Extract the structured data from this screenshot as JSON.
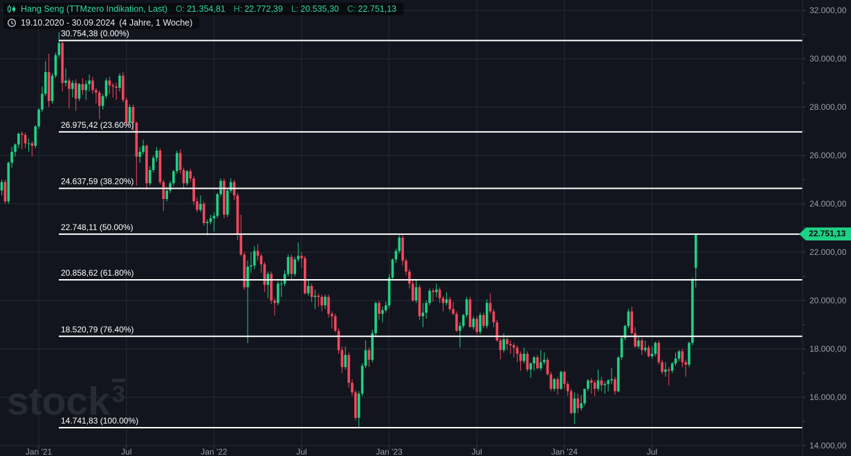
{
  "header": {
    "symbol": "Hang Seng (TTMzero Indikation, Last)",
    "open_label": "O:",
    "open": "21.354,81",
    "high_label": "H:",
    "high": "22.772,39",
    "low_label": "L:",
    "low": "20.535,30",
    "close_label": "C:",
    "close": "22.751,13",
    "date_range": "19.10.2020 - 30.09.2024",
    "period": "(4 Jahre, 1 Woche)"
  },
  "price_tag": {
    "value": "22.751,13"
  },
  "watermark": {
    "text": "stock",
    "sup": "3"
  },
  "colors": {
    "background": "#12151d",
    "grid": "#262a34",
    "up": "#1ed184",
    "down": "#f6465d",
    "fib": "#ffffff",
    "axis_text": "#9b9fa8",
    "tick": "#3c414d",
    "header_green": "#2ed9a2",
    "tag_bg": "#1ed184",
    "tag_text": "#0a0f17"
  },
  "chart_data": {
    "type": "candlestick",
    "title": "Hang Seng (TTMzero Indikation, Last)",
    "timeframe": "1 Woche",
    "range": "19.10.2020 - 30.09.2024",
    "ylim": [
      14000,
      32000
    ],
    "y_label_step": 2000,
    "y_tick_step": 1000,
    "grid": true,
    "last_price": 22751.13,
    "y_axis_labels": [
      "32.000,00",
      "30.000,00",
      "28.000,00",
      "26.000,00",
      "24.000,00",
      "22.000,00",
      "20.000,00",
      "18.000,00",
      "16.000,00",
      "14.000,00"
    ],
    "x_ticks": [
      {
        "week": 11,
        "label": "Jan '21"
      },
      {
        "week": 37,
        "label": "Jul"
      },
      {
        "week": 63,
        "label": "Jan '22"
      },
      {
        "week": 89,
        "label": "Jul"
      },
      {
        "week": 115,
        "label": "Jan '23"
      },
      {
        "week": 141,
        "label": "Jul"
      },
      {
        "week": 167,
        "label": "Jan '24"
      },
      {
        "week": 193,
        "label": "Jul"
      }
    ],
    "fib_levels": [
      {
        "price": 30754.38,
        "label": "30.754,38 (0.00%)"
      },
      {
        "price": 26975.42,
        "label": "26.975,42 (23.60%)"
      },
      {
        "price": 24637.59,
        "label": "24.637,59 (38.20%)"
      },
      {
        "price": 22748.11,
        "label": "22.748,11 (50.00%)"
      },
      {
        "price": 20858.62,
        "label": "20.858,62 (61.80%)"
      },
      {
        "price": 18520.79,
        "label": "18.520,79 (76.40%)"
      },
      {
        "price": 14741.83,
        "label": "14.741,83 (100.00%)"
      }
    ],
    "candles": [
      [
        24550,
        25000,
        24350,
        24900
      ],
      [
        24900,
        25000,
        24000,
        24100
      ],
      [
        24100,
        25750,
        24000,
        25700
      ],
      [
        25700,
        26350,
        25500,
        26150
      ],
      [
        26150,
        26500,
        25950,
        26450
      ],
      [
        26450,
        26950,
        26300,
        26900
      ],
      [
        26900,
        27000,
        26250,
        26850
      ],
      [
        26850,
        26950,
        26300,
        26500
      ],
      [
        26500,
        26700,
        26150,
        26500
      ],
      [
        26500,
        26600,
        25950,
        26400
      ],
      [
        26400,
        27250,
        26300,
        27200
      ],
      [
        27200,
        27950,
        27100,
        27900
      ],
      [
        27900,
        28850,
        27800,
        28550
      ],
      [
        28550,
        29900,
        28450,
        29450
      ],
      [
        29450,
        30200,
        28000,
        28250
      ],
      [
        28250,
        29400,
        28150,
        29300
      ],
      [
        29300,
        30250,
        29200,
        30150
      ],
      [
        30150,
        31100,
        30050,
        30650
      ],
      [
        30650,
        30750,
        28650,
        29000
      ],
      [
        29000,
        29600,
        28850,
        29100
      ],
      [
        29100,
        29200,
        27950,
        28750
      ],
      [
        28750,
        29100,
        28400,
        29000
      ],
      [
        29000,
        29150,
        27850,
        28350
      ],
      [
        28350,
        29000,
        28250,
        28950
      ],
      [
        28950,
        29200,
        28500,
        28700
      ],
      [
        28700,
        29100,
        28300,
        28950
      ],
      [
        28950,
        29350,
        28650,
        29100
      ],
      [
        29100,
        29250,
        28550,
        28700
      ],
      [
        28700,
        28800,
        28150,
        28600
      ],
      [
        28600,
        28700,
        27500,
        28050
      ],
      [
        28050,
        28550,
        27900,
        28450
      ],
      [
        28450,
        29200,
        28350,
        29100
      ],
      [
        29100,
        29250,
        28550,
        28900
      ],
      [
        28900,
        29000,
        28400,
        28850
      ],
      [
        28850,
        29000,
        28300,
        28800
      ],
      [
        28800,
        29400,
        28650,
        29300
      ],
      [
        29300,
        29450,
        28200,
        28300
      ],
      [
        28300,
        28400,
        27250,
        27350
      ],
      [
        27350,
        28100,
        27250,
        28000
      ],
      [
        28000,
        28100,
        26950,
        27350
      ],
      [
        27350,
        27400,
        24750,
        25950
      ],
      [
        25950,
        26350,
        25700,
        26150
      ],
      [
        26150,
        26650,
        26050,
        26400
      ],
      [
        26400,
        26450,
        24580,
        24850
      ],
      [
        24850,
        25550,
        24750,
        25400
      ],
      [
        25400,
        26000,
        25300,
        25900
      ],
      [
        25900,
        26350,
        25750,
        26200
      ],
      [
        26200,
        26300,
        24800,
        24900
      ],
      [
        24900,
        25000,
        23700,
        24200
      ],
      [
        24200,
        24700,
        24100,
        24550
      ],
      [
        24550,
        24950,
        24450,
        24850
      ],
      [
        24850,
        25400,
        24750,
        25350
      ],
      [
        25350,
        26200,
        25250,
        26100
      ],
      [
        26100,
        26250,
        25250,
        25400
      ],
      [
        25400,
        25500,
        24650,
        24850
      ],
      [
        24850,
        25400,
        24750,
        25350
      ],
      [
        25350,
        25450,
        24900,
        25050
      ],
      [
        25050,
        25150,
        23950,
        24100
      ],
      [
        24100,
        24250,
        23650,
        23750
      ],
      [
        23750,
        24350,
        23650,
        24000
      ],
      [
        24000,
        24100,
        23100,
        23200
      ],
      [
        23200,
        23350,
        22700,
        23250
      ],
      [
        23250,
        23550,
        23150,
        23400
      ],
      [
        23400,
        23650,
        22850,
        23500
      ],
      [
        23500,
        24450,
        23400,
        24400
      ],
      [
        24400,
        25050,
        24300,
        24950
      ],
      [
        24950,
        25050,
        23400,
        23550
      ],
      [
        23550,
        24600,
        23450,
        24550
      ],
      [
        24550,
        25050,
        24450,
        24900
      ],
      [
        24900,
        25000,
        24150,
        24350
      ],
      [
        24350,
        24450,
        22500,
        22750
      ],
      [
        22750,
        23550,
        21850,
        21900
      ],
      [
        21900,
        22000,
        20450,
        20550
      ],
      [
        20550,
        21650,
        18235,
        21400
      ],
      [
        21400,
        22000,
        21150,
        21450
      ],
      [
        21450,
        22250,
        21300,
        22050
      ],
      [
        22050,
        22350,
        21650,
        21850
      ],
      [
        21850,
        21950,
        21150,
        21500
      ],
      [
        21500,
        21600,
        20350,
        20650
      ],
      [
        20650,
        21200,
        20100,
        21100
      ],
      [
        21100,
        21200,
        19850,
        20000
      ],
      [
        20000,
        20100,
        19380,
        19900
      ],
      [
        19900,
        20800,
        19800,
        20700
      ],
      [
        20700,
        20850,
        20150,
        20700
      ],
      [
        20700,
        21250,
        20600,
        21100
      ],
      [
        21100,
        21900,
        21000,
        21800
      ],
      [
        21800,
        21900,
        20850,
        21100
      ],
      [
        21100,
        21800,
        21000,
        21700
      ],
      [
        21700,
        22400,
        21600,
        21850
      ],
      [
        21850,
        22000,
        21350,
        21750
      ],
      [
        21750,
        21850,
        20250,
        20300
      ],
      [
        20300,
        20850,
        20200,
        20600
      ],
      [
        20600,
        20700,
        19950,
        20150
      ],
      [
        20150,
        20450,
        19650,
        20200
      ],
      [
        20200,
        20300,
        19750,
        20150
      ],
      [
        20150,
        20250,
        19550,
        19800
      ],
      [
        19800,
        20250,
        19650,
        20150
      ],
      [
        20150,
        20250,
        19300,
        19450
      ],
      [
        19450,
        19550,
        18850,
        19350
      ],
      [
        19350,
        19450,
        18700,
        18750
      ],
      [
        18750,
        18850,
        17800,
        17950
      ],
      [
        17950,
        18100,
        17000,
        17250
      ],
      [
        17250,
        18100,
        17150,
        17750
      ],
      [
        17750,
        17850,
        16400,
        16600
      ],
      [
        16600,
        16750,
        16050,
        16200
      ],
      [
        16200,
        16300,
        15050,
        15150
      ],
      [
        15150,
        16250,
        14742,
        16150
      ],
      [
        16150,
        17400,
        16050,
        17300
      ],
      [
        17300,
        18350,
        17200,
        17950
      ],
      [
        17950,
        18050,
        17250,
        17550
      ],
      [
        17550,
        18800,
        17450,
        18650
      ],
      [
        18650,
        19950,
        18550,
        19900
      ],
      [
        19900,
        20000,
        19200,
        19450
      ],
      [
        19450,
        19750,
        19100,
        19600
      ],
      [
        19600,
        19950,
        19500,
        19800
      ],
      [
        19800,
        21100,
        19700,
        20950
      ],
      [
        20950,
        21750,
        20850,
        21700
      ],
      [
        21700,
        22150,
        21550,
        22050
      ],
      [
        22050,
        22700,
        21950,
        22600
      ],
      [
        22600,
        22700,
        21450,
        21650
      ],
      [
        21650,
        21750,
        21050,
        21200
      ],
      [
        21200,
        21300,
        20500,
        20700
      ],
      [
        20700,
        20850,
        19950,
        20000
      ],
      [
        20000,
        20900,
        19900,
        20550
      ],
      [
        20550,
        20650,
        19200,
        19350
      ],
      [
        19350,
        19900,
        18900,
        19500
      ],
      [
        19500,
        20000,
        19250,
        19900
      ],
      [
        19900,
        20500,
        19800,
        20400
      ],
      [
        20400,
        20500,
        19950,
        20350
      ],
      [
        20350,
        20700,
        20150,
        20450
      ],
      [
        20450,
        20550,
        19900,
        20100
      ],
      [
        20100,
        20200,
        19550,
        19900
      ],
      [
        19900,
        20350,
        19800,
        20050
      ],
      [
        20050,
        20150,
        19550,
        19650
      ],
      [
        19650,
        19950,
        19400,
        19450
      ],
      [
        19450,
        19550,
        18700,
        18750
      ],
      [
        18750,
        19100,
        18050,
        18950
      ],
      [
        18950,
        19450,
        18850,
        19400
      ],
      [
        19400,
        20150,
        19300,
        20050
      ],
      [
        20050,
        20150,
        18900,
        18900
      ],
      [
        18900,
        19350,
        18800,
        19250
      ],
      [
        19250,
        19350,
        18600,
        18700
      ],
      [
        18700,
        19500,
        18600,
        19400
      ],
      [
        19400,
        19500,
        18850,
        18950
      ],
      [
        18950,
        20050,
        18850,
        19900
      ],
      [
        19900,
        20300,
        19450,
        19550
      ],
      [
        19550,
        19650,
        18900,
        19100
      ],
      [
        19100,
        19200,
        18300,
        18350
      ],
      [
        18350,
        18450,
        17570,
        17950
      ],
      [
        17950,
        18650,
        17850,
        18400
      ],
      [
        18400,
        18500,
        17950,
        18200
      ],
      [
        18200,
        18350,
        17800,
        18150
      ],
      [
        18150,
        18250,
        17650,
        18050
      ],
      [
        18050,
        18150,
        17450,
        17800
      ],
      [
        17800,
        17900,
        17100,
        17500
      ],
      [
        17500,
        18050,
        17400,
        17800
      ],
      [
        17800,
        17900,
        17050,
        17150
      ],
      [
        17150,
        17450,
        16800,
        17400
      ],
      [
        17400,
        17700,
        17100,
        17650
      ],
      [
        17650,
        17750,
        17150,
        17200
      ],
      [
        17200,
        17950,
        17100,
        17450
      ],
      [
        17450,
        17850,
        17350,
        17550
      ],
      [
        17550,
        17650,
        16900,
        16950
      ],
      [
        16950,
        17050,
        16250,
        16350
      ],
      [
        16350,
        16800,
        16250,
        16750
      ],
      [
        16750,
        16850,
        16100,
        16350
      ],
      [
        16350,
        17100,
        16300,
        17050
      ],
      [
        17050,
        17100,
        16350,
        16550
      ],
      [
        16550,
        16650,
        16050,
        16250
      ],
      [
        16250,
        16350,
        15300,
        15350
      ],
      [
        15350,
        16200,
        14900,
        15950
      ],
      [
        15950,
        16150,
        15350,
        15550
      ],
      [
        15550,
        16100,
        15450,
        15750
      ],
      [
        15750,
        16350,
        15650,
        16350
      ],
      [
        16350,
        16750,
        16250,
        16700
      ],
      [
        16700,
        16800,
        16150,
        16600
      ],
      [
        16600,
        16700,
        16050,
        16350
      ],
      [
        16350,
        17150,
        16250,
        16700
      ],
      [
        16700,
        16850,
        16250,
        16500
      ],
      [
        16500,
        16650,
        16150,
        16550
      ],
      [
        16550,
        16750,
        16250,
        16700
      ],
      [
        16700,
        17200,
        16550,
        16750
      ],
      [
        16750,
        16850,
        16100,
        16250
      ],
      [
        16250,
        17700,
        16200,
        17650
      ],
      [
        17650,
        18550,
        17550,
        18450
      ],
      [
        18450,
        19000,
        18350,
        18950
      ],
      [
        18950,
        19650,
        18850,
        19550
      ],
      [
        19550,
        19750,
        18600,
        18650
      ],
      [
        18650,
        18900,
        18050,
        18100
      ],
      [
        18100,
        18500,
        18000,
        18350
      ],
      [
        18350,
        18450,
        17750,
        17950
      ],
      [
        17950,
        18350,
        17850,
        18050
      ],
      [
        18050,
        18150,
        17650,
        17700
      ],
      [
        17700,
        18100,
        17600,
        17800
      ],
      [
        17800,
        18300,
        17700,
        18250
      ],
      [
        18250,
        18350,
        17350,
        17450
      ],
      [
        17450,
        17550,
        16950,
        17050
      ],
      [
        17050,
        17450,
        16850,
        17150
      ],
      [
        17150,
        17250,
        16500,
        17100
      ],
      [
        17100,
        17450,
        17000,
        17400
      ],
      [
        17400,
        17850,
        17300,
        17600
      ],
      [
        17600,
        17950,
        17500,
        17900
      ],
      [
        17900,
        18000,
        17250,
        17450
      ],
      [
        17450,
        17550,
        16850,
        17350
      ],
      [
        17350,
        18300,
        17250,
        18250
      ],
      [
        18250,
        20950,
        18150,
        20860
      ],
      [
        21355,
        22772,
        20535,
        22751
      ]
    ]
  }
}
